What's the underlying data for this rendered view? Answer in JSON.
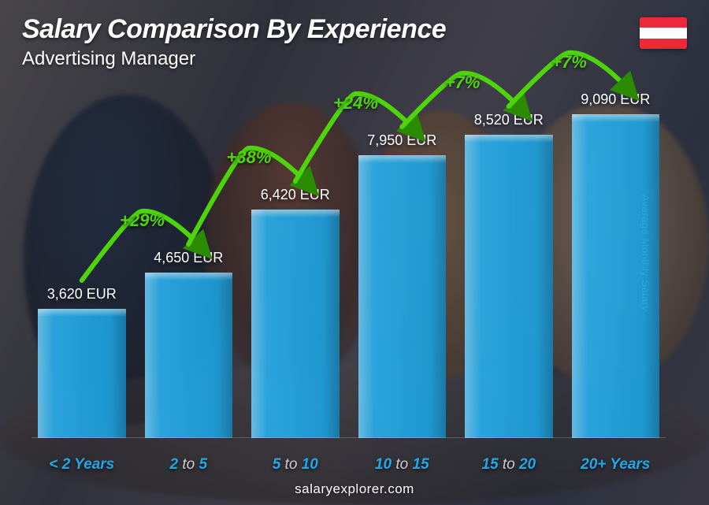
{
  "header": {
    "title": "Salary Comparison By Experience",
    "subtitle": "Advertising Manager"
  },
  "flag": {
    "stripes": [
      "#ed2939",
      "#ffffff",
      "#ed2939"
    ]
  },
  "axis_label": "Average Monthly Salary",
  "footer": "salaryexplorer.com",
  "chart": {
    "type": "bar",
    "bar_color": "#1fa8e8",
    "accent_color": "#1fa8e8",
    "increase_arc_color": "#4dd40a",
    "increase_arrow_color": "#2a8a00",
    "text_color": "#ffffff",
    "max_value": 9090,
    "value_suffix": " EUR",
    "items": [
      {
        "label_bold": "< 2",
        "label_rest": " Years",
        "value": 3620,
        "value_text": "3,620 EUR",
        "increase_from_prev": null
      },
      {
        "label_bold": "2",
        "label_mid": " to ",
        "label_bold2": "5",
        "value": 4650,
        "value_text": "4,650 EUR",
        "increase_from_prev": "+29%"
      },
      {
        "label_bold": "5",
        "label_mid": " to ",
        "label_bold2": "10",
        "value": 6420,
        "value_text": "6,420 EUR",
        "increase_from_prev": "+38%"
      },
      {
        "label_bold": "10",
        "label_mid": " to ",
        "label_bold2": "15",
        "value": 7950,
        "value_text": "7,950 EUR",
        "increase_from_prev": "+24%"
      },
      {
        "label_bold": "15",
        "label_mid": " to ",
        "label_bold2": "20",
        "value": 8520,
        "value_text": "8,520 EUR",
        "increase_from_prev": "+7%"
      },
      {
        "label_bold": "20+",
        "label_rest": " Years",
        "value": 9090,
        "value_text": "9,090 EUR",
        "increase_from_prev": "+7%"
      }
    ]
  }
}
